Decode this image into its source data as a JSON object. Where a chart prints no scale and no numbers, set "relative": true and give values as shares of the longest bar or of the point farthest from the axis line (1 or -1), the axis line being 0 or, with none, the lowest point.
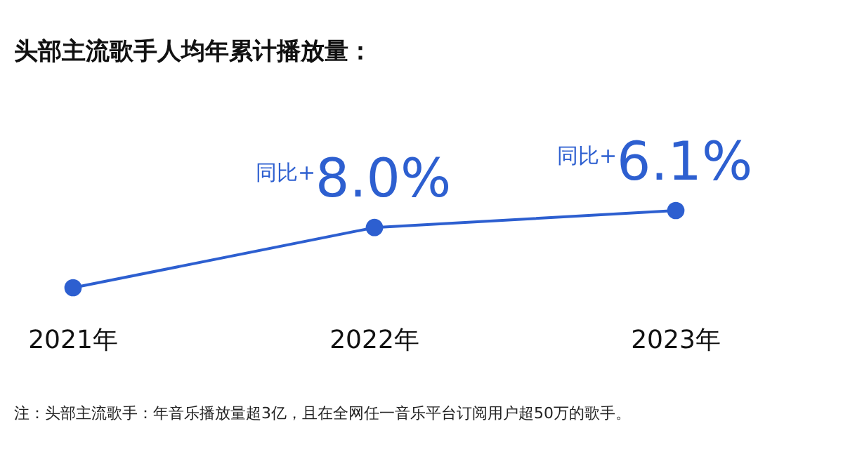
{
  "chart_data": {
    "type": "line",
    "title": "头部主流歌手人均年累计播放量：",
    "relative": true,
    "categories": [
      "2021年",
      "2022年",
      "2023年"
    ],
    "series": [
      {
        "color": "#2d5fd0",
        "values": [
          0,
          0.78,
          1
        ]
      }
    ],
    "marker": "circle",
    "annotations": [
      "同比+8.0%",
      "同比+6.1%",
      "注：头部主流歌手：年音乐播放量超3亿，且在全网任一音乐平台订阅用户超50万的歌手。"
    ]
  }
}
